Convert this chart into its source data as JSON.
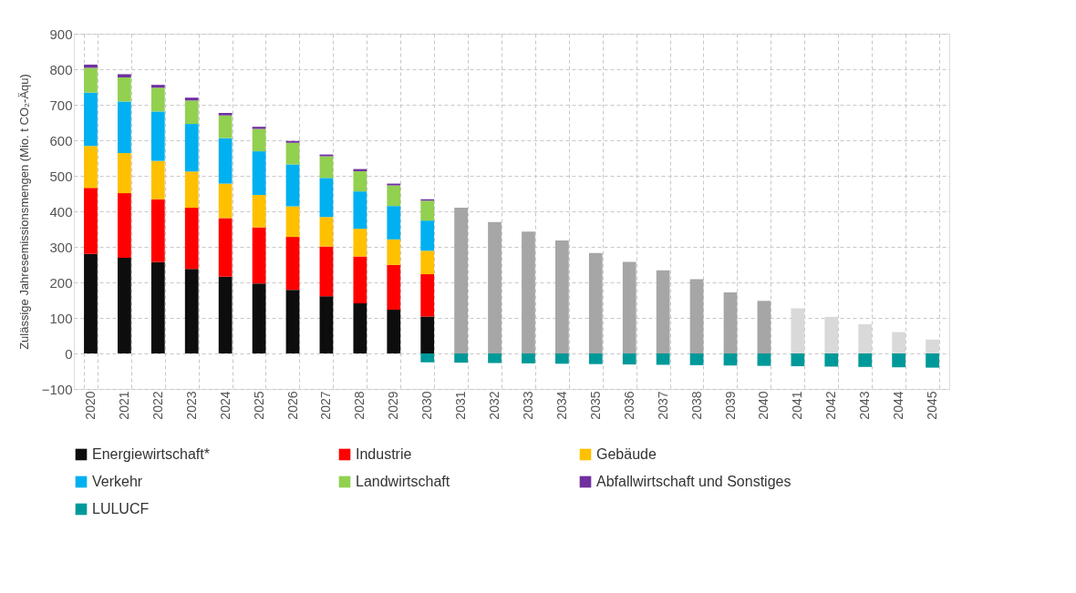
{
  "chart_data": {
    "type": "bar",
    "stacked": true,
    "ylabel": "Zulässige Jahresemissionsmengen (Mio. t CO₂-Äqu)",
    "categories": [
      "2020",
      "2021",
      "2022",
      "2023",
      "2024",
      "2025",
      "2026",
      "2027",
      "2028",
      "2029",
      "2030",
      "2031",
      "2032",
      "2033",
      "2034",
      "2035",
      "2036",
      "2037",
      "2038",
      "2039",
      "2040",
      "2041",
      "2042",
      "2043",
      "2044",
      "2045"
    ],
    "series": [
      {
        "name": "Energiewirtschaft*",
        "color": "#0d0d0d",
        "values": [
          280,
          269,
          257,
          238,
          216,
          197,
          179,
          161,
          141,
          123,
          104,
          null,
          null,
          null,
          null,
          null,
          null,
          null,
          null,
          null,
          null,
          null,
          null,
          null,
          null,
          null
        ]
      },
      {
        "name": "Industrie",
        "color": "#ff0000",
        "values": [
          186,
          182,
          177,
          172,
          165,
          158,
          149,
          140,
          132,
          126,
          119,
          null,
          null,
          null,
          null,
          null,
          null,
          null,
          null,
          null,
          null,
          null,
          null,
          null,
          null,
          null
        ]
      },
      {
        "name": "Gebäude",
        "color": "#ffc000",
        "values": [
          118,
          113,
          108,
          102,
          97,
          91,
          86,
          83,
          78,
          72,
          66,
          null,
          null,
          null,
          null,
          null,
          null,
          null,
          null,
          null,
          null,
          null,
          null,
          null,
          null,
          null
        ]
      },
      {
        "name": "Verkehr",
        "color": "#00b0f0",
        "values": [
          150,
          145,
          139,
          134,
          128,
          123,
          118,
          110,
          105,
          94,
          85,
          null,
          null,
          null,
          null,
          null,
          null,
          null,
          null,
          null,
          null,
          null,
          null,
          null,
          null,
          null
        ]
      },
      {
        "name": "Landwirtschaft",
        "color": "#92d050",
        "values": [
          70,
          68,
          67,
          66,
          64,
          63,
          61,
          61,
          57,
          58,
          56,
          null,
          null,
          null,
          null,
          null,
          null,
          null,
          null,
          null,
          null,
          null,
          null,
          null,
          null,
          null
        ]
      },
      {
        "name": "Abfallwirtschaft und Sonstiges",
        "color": "#7030a0",
        "values": [
          9,
          9,
          8,
          8,
          7,
          6,
          5,
          5,
          6,
          5,
          4,
          null,
          null,
          null,
          null,
          null,
          null,
          null,
          null,
          null,
          null,
          null,
          null,
          null,
          null,
          null
        ]
      },
      {
        "name": "LULUCF",
        "color": "#009999",
        "values": [
          null,
          null,
          null,
          null,
          null,
          null,
          null,
          null,
          null,
          null,
          -25,
          -26,
          -27,
          -28,
          -29,
          -30,
          -31,
          -32,
          -33,
          -34,
          -35,
          -36,
          -37,
          -38,
          -39,
          -40
        ]
      },
      {
        "colors": [
          "#a6a6a6",
          "#a6a6a6",
          "#a6a6a6",
          "#a6a6a6",
          "#a6a6a6",
          "#a6a6a6",
          "#a6a6a6",
          "#a6a6a6",
          "#a6a6a6",
          "#a6a6a6",
          "#a6a6a6",
          "#a6a6a6",
          "#a6a6a6",
          "#a6a6a6",
          "#a6a6a6",
          "#a6a6a6",
          "#a6a6a6",
          "#a6a6a6",
          "#a6a6a6",
          "#a6a6a6",
          "#a6a6a6",
          "#d9d9d9",
          "#d9d9d9",
          "#d9d9d9",
          "#d9d9d9",
          "#d9d9d9"
        ],
        "values": [
          null,
          null,
          null,
          null,
          null,
          null,
          null,
          null,
          null,
          null,
          null,
          410,
          370,
          343,
          318,
          283,
          258,
          234,
          209,
          172,
          148,
          127,
          103,
          82,
          60,
          39
        ]
      }
    ],
    "ylim": [
      -100,
      900
    ],
    "yticks": [
      -100,
      0,
      100,
      200,
      300,
      400,
      500,
      600,
      700,
      800,
      900
    ],
    "grid": true,
    "legend": "bottom"
  }
}
